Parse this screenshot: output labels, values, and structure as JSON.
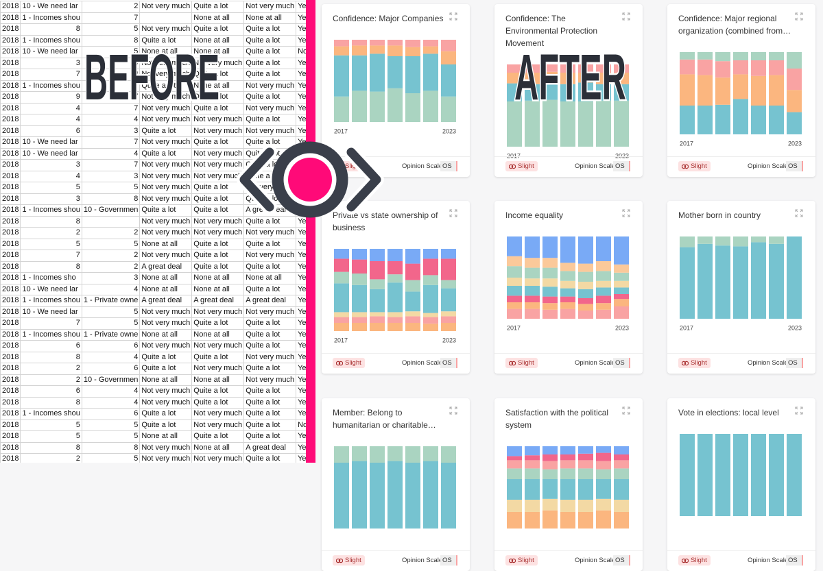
{
  "spreadsheet": {
    "rows": [
      [
        "2018",
        "10 - We need lar",
        "2",
        "Not very much",
        "Quite a lot",
        "Not very much",
        "Ye"
      ],
      [
        "2018",
        "1 - Incomes shou",
        "7",
        null,
        "None at all",
        "None at all",
        "Ye"
      ],
      [
        "2018",
        "8",
        "5",
        "Not very much",
        "Quite a lot",
        "Quite a lot",
        "Ye"
      ],
      [
        "2018",
        "1 - Incomes shou",
        "8",
        "Quite a lot",
        "None at all",
        "Quite a lot",
        "Ye"
      ],
      [
        "2018",
        "10 - We need lar",
        "5",
        "None at all",
        "None at all",
        "Quite a lot",
        "No"
      ],
      [
        "2018",
        "3",
        "4",
        "Not very much",
        "Not very much",
        "Quite a lot",
        "Ye"
      ],
      [
        "2018",
        "7",
        "3",
        "Not very much",
        "Quite a lot",
        "Quite a lot",
        "Ye"
      ],
      [
        "2018",
        "1 - Incomes shou",
        "7",
        "Quite a lot",
        "None at all",
        "Not very much",
        "Ye"
      ],
      [
        "2018",
        "9",
        "7",
        "Not very much",
        "Quite a lot",
        "Quite a lot",
        "Ye"
      ],
      [
        "2018",
        "4",
        "7",
        "Not very much",
        "Quite a lot",
        "Not very much",
        "Ye"
      ],
      [
        "2018",
        "4",
        "4",
        "Not very much",
        "Not very much",
        "Quite a lot",
        "Ye"
      ],
      [
        "2018",
        "6",
        "3",
        "Quite a lot",
        "Not very much",
        "Not very much",
        "Ye"
      ],
      [
        "2018",
        "10 - We need lar",
        "7",
        "Not very much",
        "Quite a lot",
        "Quite a lot",
        "Ye"
      ],
      [
        "2018",
        "10 - We need lar",
        "4",
        "Quite a lot",
        "Not very much",
        "Quite a lot",
        "Ye"
      ],
      [
        "2018",
        "3",
        "7",
        "Not very much",
        "Not very much",
        "Quite a lot",
        "Ye"
      ],
      [
        "2018",
        "4",
        "3",
        "Not very much",
        "Not very much",
        "Quite a lot",
        "Ye"
      ],
      [
        "2018",
        "5",
        "5",
        "Not very much",
        "Quite a lot",
        "Not very much",
        "Ye"
      ],
      [
        "2018",
        "3",
        "8",
        "Not very much",
        "Quite a lot",
        "Quite a lot",
        "Ye"
      ],
      [
        "2018",
        "1 - Incomes shou",
        "10 - Governmen",
        "Quite a lot",
        "Quite a lot",
        "A great deal",
        "Ye"
      ],
      [
        "2018",
        "8",
        null,
        "Not very much",
        "Not very much",
        "Quite a lot",
        "Ye"
      ],
      [
        "2018",
        "2",
        "2",
        "Not very much",
        "Not very much",
        "Not very much",
        "Ye"
      ],
      [
        "2018",
        "5",
        "5",
        "None at all",
        "Quite a lot",
        "Quite a lot",
        "Ye"
      ],
      [
        "2018",
        "7",
        "2",
        "Not very much",
        "Quite a lot",
        "Not very much",
        "Ye"
      ],
      [
        "2018",
        "8",
        "2",
        "A great deal",
        "Quite a lot",
        "Quite a lot",
        "Ye"
      ],
      [
        "2018",
        "1 - Incomes sho",
        "3",
        "None at all",
        "None at all",
        "None at all",
        "Ye"
      ],
      [
        "2018",
        "10 - We need lar",
        "4",
        "None at all",
        "None at all",
        "Quite a lot",
        "Ye"
      ],
      [
        "2018",
        "1 - Incomes shou",
        "1 - Private owne",
        "A great deal",
        "A great deal",
        "A great deal",
        "Ye"
      ],
      [
        "2018",
        "10 - We need lar",
        "5",
        "Not very much",
        "Not very much",
        "Not very much",
        "Ye"
      ],
      [
        "2018",
        "7",
        "5",
        "Not very much",
        "Quite a lot",
        "Quite a lot",
        "Ye"
      ],
      [
        "2018",
        "1 - Incomes shou",
        "1 - Private owne",
        "None at all",
        "None at all",
        "Quite a lot",
        "Ye"
      ],
      [
        "2018",
        "6",
        "6",
        "Not very much",
        "Not very much",
        "Quite a lot",
        "Ye"
      ],
      [
        "2018",
        "8",
        "4",
        "Quite a lot",
        "Quite a lot",
        "Not very much",
        "Ye"
      ],
      [
        "2018",
        "2",
        "6",
        "Quite a lot",
        "Not very much",
        "Quite a lot",
        "Ye"
      ],
      [
        "2018",
        "2",
        "10 - Governmen",
        "None at all",
        "None at all",
        "Not very much",
        "Ye"
      ],
      [
        "2018",
        "6",
        "4",
        "Not very much",
        "Quite a lot",
        "Quite a lot",
        "Ye"
      ],
      [
        "2018",
        "8",
        "4",
        "Not very much",
        "Quite a lot",
        "Quite a lot",
        "Ye"
      ],
      [
        "2018",
        "1 - Incomes shou",
        "6",
        "Quite a lot",
        "Not very much",
        "Quite a lot",
        "Ye"
      ],
      [
        "2018",
        "5",
        "5",
        "Quite a lot",
        "Not very much",
        "Quite a lot",
        "No"
      ],
      [
        "2018",
        "5",
        "5",
        "None at all",
        "Quite a lot",
        "Quite a lot",
        "Ye"
      ],
      [
        "2018",
        "8",
        "8",
        "Not very much",
        "None at all",
        "A great deal",
        "Ye"
      ],
      [
        "2018",
        "2",
        "5",
        "Not very much",
        "Not very much",
        "Quite a lot",
        "Ye"
      ]
    ]
  },
  "overlay": {
    "before": "BEFORE",
    "after": "AFTER"
  },
  "chart_data": [
    {
      "type": "bar",
      "stacked": true,
      "title": "Confidence: Major Companies",
      "categories": [
        "2017",
        null,
        null,
        null,
        null,
        null,
        "2023"
      ],
      "ylim": [
        0,
        100
      ],
      "series": [
        {
          "color": "#aad4c1",
          "values": [
            31,
            38,
            37,
            41,
            35,
            38,
            31
          ]
        },
        {
          "color": "#76c3d0",
          "values": [
            50,
            43,
            46,
            39,
            45,
            45,
            39
          ]
        },
        {
          "color": "#fbb67f",
          "values": [
            11,
            12,
            10,
            13,
            11,
            9,
            16
          ]
        },
        {
          "color": "#f9a3a3",
          "values": [
            8,
            7,
            7,
            7,
            9,
            8,
            14
          ]
        }
      ]
    },
    {
      "type": "bar",
      "stacked": true,
      "title": "Confidence: The Environmental Protection Movement",
      "categories": [
        "2017",
        null,
        null,
        null,
        null,
        null,
        "2023"
      ],
      "ylim": [
        0,
        100
      ],
      "series": [
        {
          "color": "#aad4c1",
          "values": [
            55,
            56,
            57,
            55,
            55,
            56,
            56
          ]
        },
        {
          "color": "#76c3d0",
          "values": [
            22,
            20,
            22,
            21,
            23,
            20,
            20
          ]
        },
        {
          "color": "#fbb67f",
          "values": [
            13,
            14,
            12,
            14,
            12,
            14,
            14
          ]
        },
        {
          "color": "#f9a3a3",
          "values": [
            10,
            10,
            9,
            10,
            10,
            10,
            10
          ]
        }
      ]
    },
    {
      "type": "bar",
      "stacked": true,
      "title": "Confidence: Major regional organization (combined from…",
      "categories": [
        "2017",
        null,
        null,
        null,
        null,
        null,
        "2023"
      ],
      "ylim": [
        0,
        100
      ],
      "series": [
        {
          "color": "#76c3d0",
          "values": [
            35,
            35,
            36,
            43,
            35,
            35,
            27
          ]
        },
        {
          "color": "#fbb67f",
          "values": [
            38,
            37,
            33,
            30,
            36,
            37,
            27
          ]
        },
        {
          "color": "#f9a3a3",
          "values": [
            18,
            19,
            20,
            17,
            19,
            18,
            26
          ]
        },
        {
          "color": "#aad4c1",
          "values": [
            9,
            9,
            11,
            10,
            10,
            10,
            20
          ]
        }
      ]
    },
    {
      "type": "bar",
      "stacked": true,
      "title": "Private vs state ownership of business",
      "categories": [
        "2017",
        null,
        null,
        null,
        null,
        null,
        "2023"
      ],
      "ylim": [
        0,
        100
      ],
      "series": [
        {
          "color": "#fbb67f",
          "values": [
            10,
            10,
            10,
            10,
            10,
            9,
            10
          ]
        },
        {
          "color": "#f9a3a3",
          "values": [
            7,
            7,
            8,
            7,
            8,
            8,
            8
          ]
        },
        {
          "color": "#f3d9a4",
          "values": [
            6,
            6,
            5,
            6,
            6,
            5,
            6
          ]
        },
        {
          "color": "#76c3d0",
          "values": [
            35,
            33,
            28,
            36,
            24,
            34,
            28
          ]
        },
        {
          "color": "#aad4c1",
          "values": [
            14,
            14,
            12,
            10,
            14,
            12,
            10
          ]
        },
        {
          "color": "#f2668b",
          "values": [
            16,
            17,
            22,
            16,
            20,
            20,
            26
          ]
        },
        {
          "color": "#79aaf6",
          "values": [
            12,
            13,
            15,
            15,
            18,
            12,
            12
          ]
        }
      ]
    },
    {
      "type": "bar",
      "stacked": true,
      "title": "Income equality",
      "categories": [
        "2017",
        null,
        null,
        null,
        null,
        null,
        "2023"
      ],
      "ylim": [
        0,
        100
      ],
      "series": [
        {
          "color": "#f9a3a3",
          "values": [
            12,
            12,
            11,
            12,
            10,
            11,
            15
          ]
        },
        {
          "color": "#fbb67f",
          "values": [
            8,
            8,
            8,
            8,
            8,
            8,
            9
          ]
        },
        {
          "color": "#f2668b",
          "values": [
            8,
            8,
            8,
            7,
            7,
            9,
            6
          ]
        },
        {
          "color": "#76c3d0",
          "values": [
            12,
            12,
            12,
            10,
            11,
            10,
            8
          ]
        },
        {
          "color": "#f3d9a4",
          "values": [
            10,
            9,
            10,
            9,
            9,
            8,
            8
          ]
        },
        {
          "color": "#aad4c1",
          "values": [
            14,
            13,
            13,
            12,
            12,
            12,
            10
          ]
        },
        {
          "color": "#fbc99a",
          "values": [
            12,
            12,
            12,
            10,
            10,
            12,
            10
          ]
        },
        {
          "color": "#79aaf6",
          "values": [
            24,
            26,
            26,
            32,
            33,
            30,
            34
          ]
        }
      ]
    },
    {
      "type": "bar",
      "stacked": true,
      "title": "Mother born in country",
      "categories": [
        "2017",
        null,
        null,
        null,
        null,
        null,
        "2023"
      ],
      "ylim": [
        0,
        100
      ],
      "series": [
        {
          "color": "#76c3d0",
          "values": [
            87,
            91,
            89,
            88,
            93,
            91,
            100
          ]
        },
        {
          "color": "#aad4c1",
          "values": [
            13,
            9,
            11,
            12,
            7,
            9,
            0
          ]
        }
      ]
    },
    {
      "type": "bar",
      "stacked": true,
      "title": "Member: Belong to humanitarian or charitable…",
      "categories": [
        null,
        null,
        null,
        null,
        null,
        null,
        null
      ],
      "ylim": [
        0,
        100
      ],
      "series": [
        {
          "color": "#76c3d0",
          "values": [
            80,
            82,
            80,
            82,
            80,
            82,
            80
          ]
        },
        {
          "color": "#aad4c1",
          "values": [
            20,
            18,
            20,
            18,
            20,
            18,
            20
          ]
        }
      ]
    },
    {
      "type": "bar",
      "stacked": true,
      "title": "Satisfaction with the political system",
      "categories": [
        null,
        null,
        null,
        null,
        null,
        null,
        null
      ],
      "ylim": [
        0,
        100
      ],
      "series": [
        {
          "color": "#fbb67f",
          "values": [
            20,
            20,
            22,
            20,
            20,
            22,
            20
          ]
        },
        {
          "color": "#f3d9a4",
          "values": [
            15,
            15,
            14,
            15,
            15,
            14,
            15
          ]
        },
        {
          "color": "#76c3d0",
          "values": [
            25,
            25,
            24,
            25,
            25,
            24,
            25
          ]
        },
        {
          "color": "#aad4c1",
          "values": [
            13,
            13,
            12,
            13,
            13,
            12,
            13
          ]
        },
        {
          "color": "#f9a3a3",
          "values": [
            10,
            10,
            10,
            10,
            10,
            10,
            10
          ]
        },
        {
          "color": "#f2668b",
          "values": [
            5,
            6,
            8,
            7,
            8,
            10,
            7
          ]
        },
        {
          "color": "#79aaf6",
          "values": [
            12,
            11,
            10,
            10,
            9,
            8,
            10
          ]
        }
      ]
    },
    {
      "type": "bar",
      "stacked": true,
      "title": "Vote in elections: local level",
      "categories": [
        null,
        null,
        null,
        null,
        null,
        null,
        null
      ],
      "ylim": [
        0,
        100
      ],
      "series": [
        {
          "color": "#76c3d0",
          "values": [
            100,
            100,
            100,
            100,
            100,
            100,
            100
          ]
        }
      ]
    }
  ],
  "cards": [
    {
      "tag": "Slight",
      "scale": "Opinion Scale",
      "badge": "OS"
    },
    {
      "tag": "Slight",
      "scale": "Opinion Scale",
      "badge": "OS"
    },
    {
      "tag": "Slight",
      "scale": "Opinion Scale",
      "badge": "OS"
    },
    {
      "tag": "Slight",
      "scale": "Opinion Scale",
      "badge": "OS"
    },
    {
      "tag": "Slight",
      "scale": "Opinion Scale",
      "badge": "OS"
    },
    {
      "tag": "Slight",
      "scale": "Opinion Scale",
      "badge": "OS"
    },
    {
      "tag": "Slight",
      "scale": "Opinion Scale",
      "badge": "OS"
    },
    {
      "tag": "Slight",
      "scale": "Opinion Scale",
      "badge": "OS"
    },
    {
      "tag": "Slight",
      "scale": "Opinion Scale",
      "badge": "OS"
    }
  ]
}
